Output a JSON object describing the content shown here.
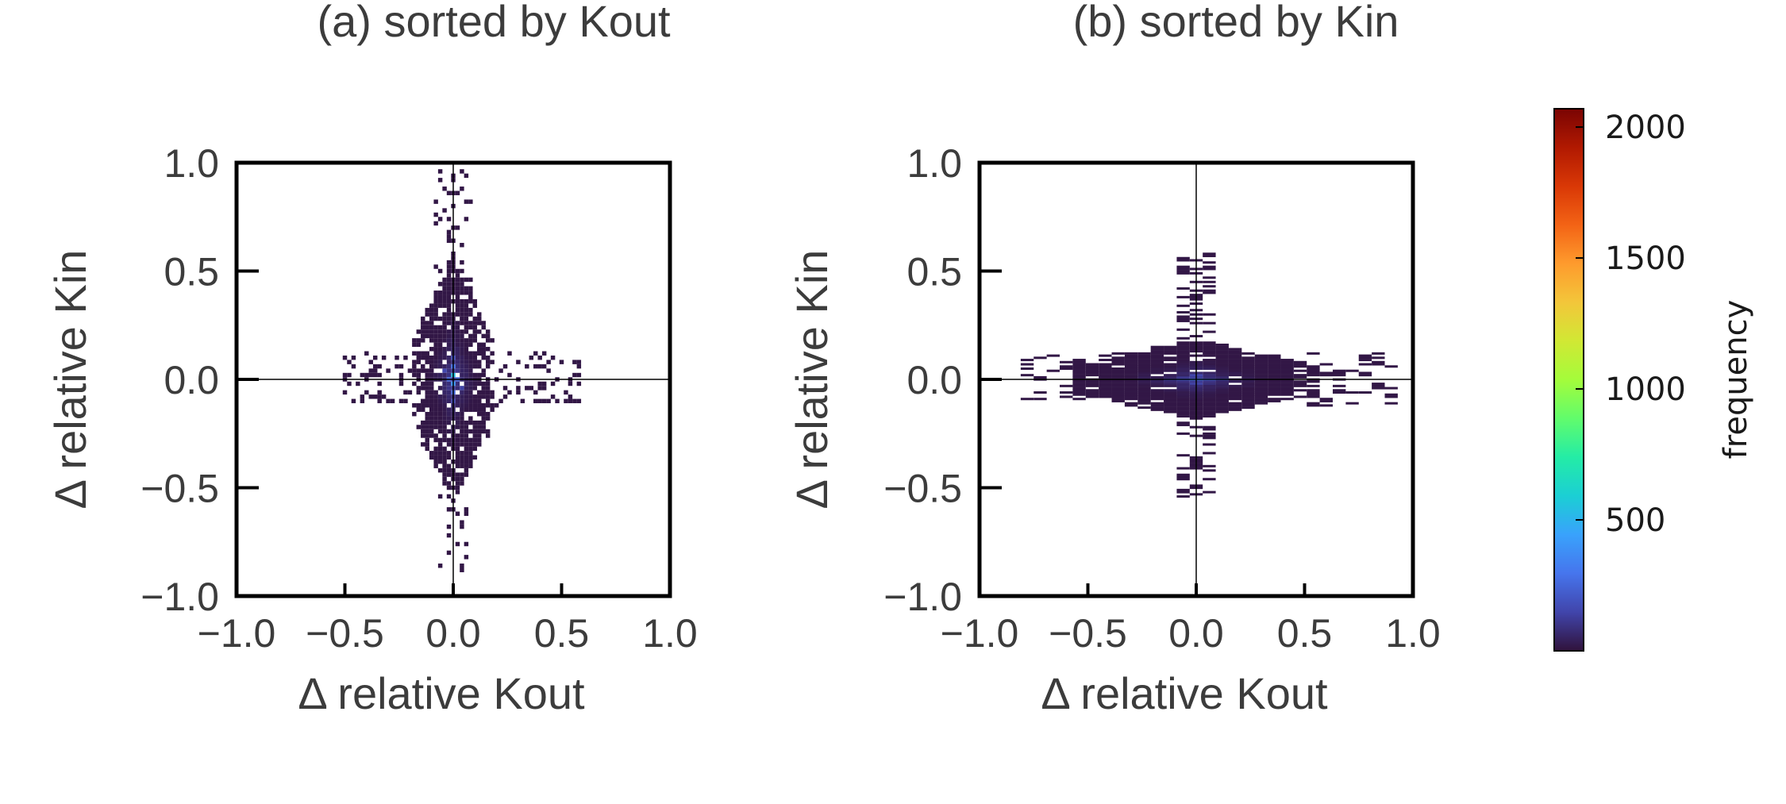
{
  "chart_data": [
    {
      "type": "heatmap",
      "title": "(a) sorted by Kout",
      "xlabel": "Δ relative Kout",
      "ylabel": "Δ relative Kin",
      "xlim": [
        -1.0,
        1.0
      ],
      "ylim": [
        -1.0,
        1.0
      ],
      "xticks": [
        "−1.0",
        "−0.5",
        "0.0",
        "0.5",
        "1.0"
      ],
      "yticks": [
        "−1.0",
        "−0.5",
        "0.0",
        "0.5",
        "1.0"
      ],
      "reference_lines": {
        "x": 0.0,
        "y": 0.0
      },
      "bin_width": [
        0.02,
        0.02
      ],
      "clusters": [
        {
          "x": 0.0,
          "y": 0.02,
          "value": 550
        },
        {
          "x": 0.0,
          "y": -0.02,
          "value": 420
        },
        {
          "x": 0.0,
          "y": 0.06,
          "value": 300
        },
        {
          "x": 0.0,
          "y": -0.06,
          "value": 260
        },
        {
          "x": -0.02,
          "y": 0.0,
          "value": 250
        },
        {
          "x": 0.02,
          "y": 0.0,
          "value": 240
        },
        {
          "x": 0.0,
          "y": 0.1,
          "value": 180
        },
        {
          "x": 0.0,
          "y": -0.1,
          "value": 160
        },
        {
          "x": -0.04,
          "y": 0.04,
          "value": 150
        },
        {
          "x": 0.04,
          "y": -0.04,
          "value": 140
        }
      ],
      "spread": {
        "body_x": 0.2,
        "body_y": 0.55,
        "outer_x": [
          -0.5,
          0.6
        ],
        "outer_y": [
          -0.9,
          1.0
        ]
      }
    },
    {
      "type": "heatmap",
      "title": "(b) sorted by Kin",
      "xlabel": "Δ relative Kout",
      "ylabel": "Δ relative Kin",
      "xlim": [
        -1.0,
        1.0
      ],
      "ylim": [
        -1.0,
        1.0
      ],
      "xticks": [
        "−1.0",
        "−0.5",
        "0.0",
        "0.5",
        "1.0"
      ],
      "yticks": [
        "−1.0",
        "−0.5",
        "0.0",
        "0.5",
        "1.0"
      ],
      "reference_lines": {
        "x": 0.0,
        "y": 0.0
      },
      "bin_width": [
        0.06,
        0.01
      ],
      "clusters": [
        {
          "x": 0.0,
          "y": 0.0,
          "value": 380
        },
        {
          "x": 0.06,
          "y": 0.0,
          "value": 300
        },
        {
          "x": -0.06,
          "y": 0.0,
          "value": 260
        },
        {
          "x": 0.12,
          "y": 0.0,
          "value": 180
        },
        {
          "x": -0.12,
          "y": 0.0,
          "value": 160
        },
        {
          "x": 0.0,
          "y": 0.02,
          "value": 150
        },
        {
          "x": 0.0,
          "y": -0.02,
          "value": 140
        }
      ],
      "spread": {
        "body_x": 0.6,
        "body_y": 0.18,
        "outer_x": [
          -0.8,
          0.9
        ],
        "outer_y": [
          -0.55,
          0.58
        ]
      }
    }
  ],
  "colorbar": {
    "label": "frequency",
    "min": 0,
    "max": 2070,
    "ticks": [
      500,
      1000,
      1500,
      2000
    ],
    "tick_labels": [
      "500",
      "1000",
      "1500",
      "2000"
    ],
    "colormap": [
      "#30123b",
      "#4145ab",
      "#4675ed",
      "#39a2fc",
      "#1bcfd4",
      "#24eca6",
      "#61fc6c",
      "#a4fc3b",
      "#d1e834",
      "#f3c63a",
      "#fe9b2d",
      "#f36315",
      "#d93806",
      "#b11901",
      "#7a0403"
    ]
  },
  "colors": {
    "frame": "#000000",
    "text": "#3c3c3c",
    "background": "#ffffff"
  }
}
